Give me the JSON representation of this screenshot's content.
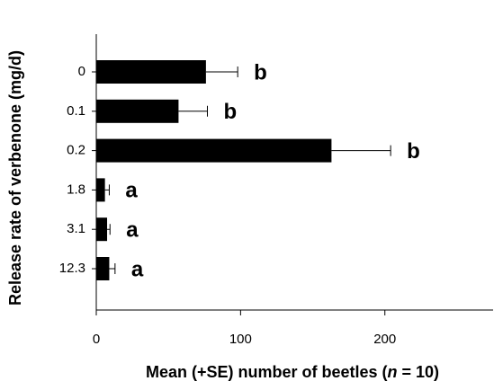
{
  "chart_data": {
    "type": "bar",
    "orientation": "horizontal",
    "categories": [
      "0",
      "0.1",
      "0.2",
      "1.8",
      "3.1",
      "12.3"
    ],
    "values": [
      76,
      57,
      163,
      6,
      7.5,
      9
    ],
    "errors": [
      22,
      20,
      41,
      3,
      2,
      4
    ],
    "annotations": [
      "b",
      "b",
      "b",
      "a",
      "a",
      "a"
    ],
    "color": "#000000",
    "xlim": [
      0,
      275
    ],
    "xticks": [
      0,
      100,
      200
    ],
    "xlabel": [
      "Mean (+SE) number of beetles (",
      "n",
      " = 10)"
    ],
    "ylabel": "Release rate of verbenone (mg/d)"
  }
}
